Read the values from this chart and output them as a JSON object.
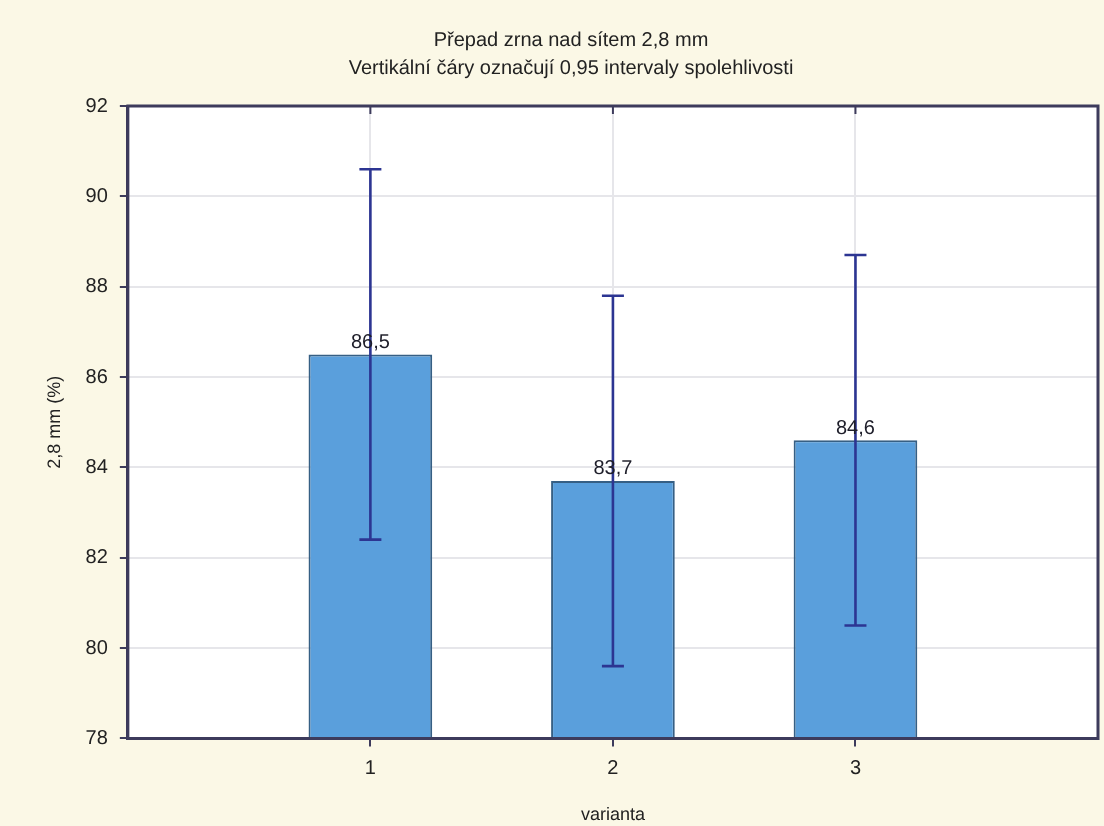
{
  "chart_data": {
    "type": "bar",
    "title": "Přepad zrna nad sítem 2,8 mm",
    "subtitle": "Vertikální čáry označují 0,95 intervaly spolehlivosti",
    "xlabel": "varianta",
    "ylabel": "2,8 mm (%)",
    "x": [
      1,
      2,
      3
    ],
    "values": [
      86.5,
      83.7,
      84.6
    ],
    "errors": [
      4.1,
      4.1,
      4.1
    ],
    "value_labels": [
      "86,5",
      "83,7",
      "84,6"
    ],
    "color": "#5a9fdc",
    "xlim": [
      0,
      4
    ],
    "xticks": [
      1,
      2,
      3
    ],
    "ylim": [
      78,
      92
    ],
    "yticks": [
      78,
      80,
      82,
      84,
      86,
      88,
      90,
      92
    ],
    "grid": true,
    "legend": false
  }
}
